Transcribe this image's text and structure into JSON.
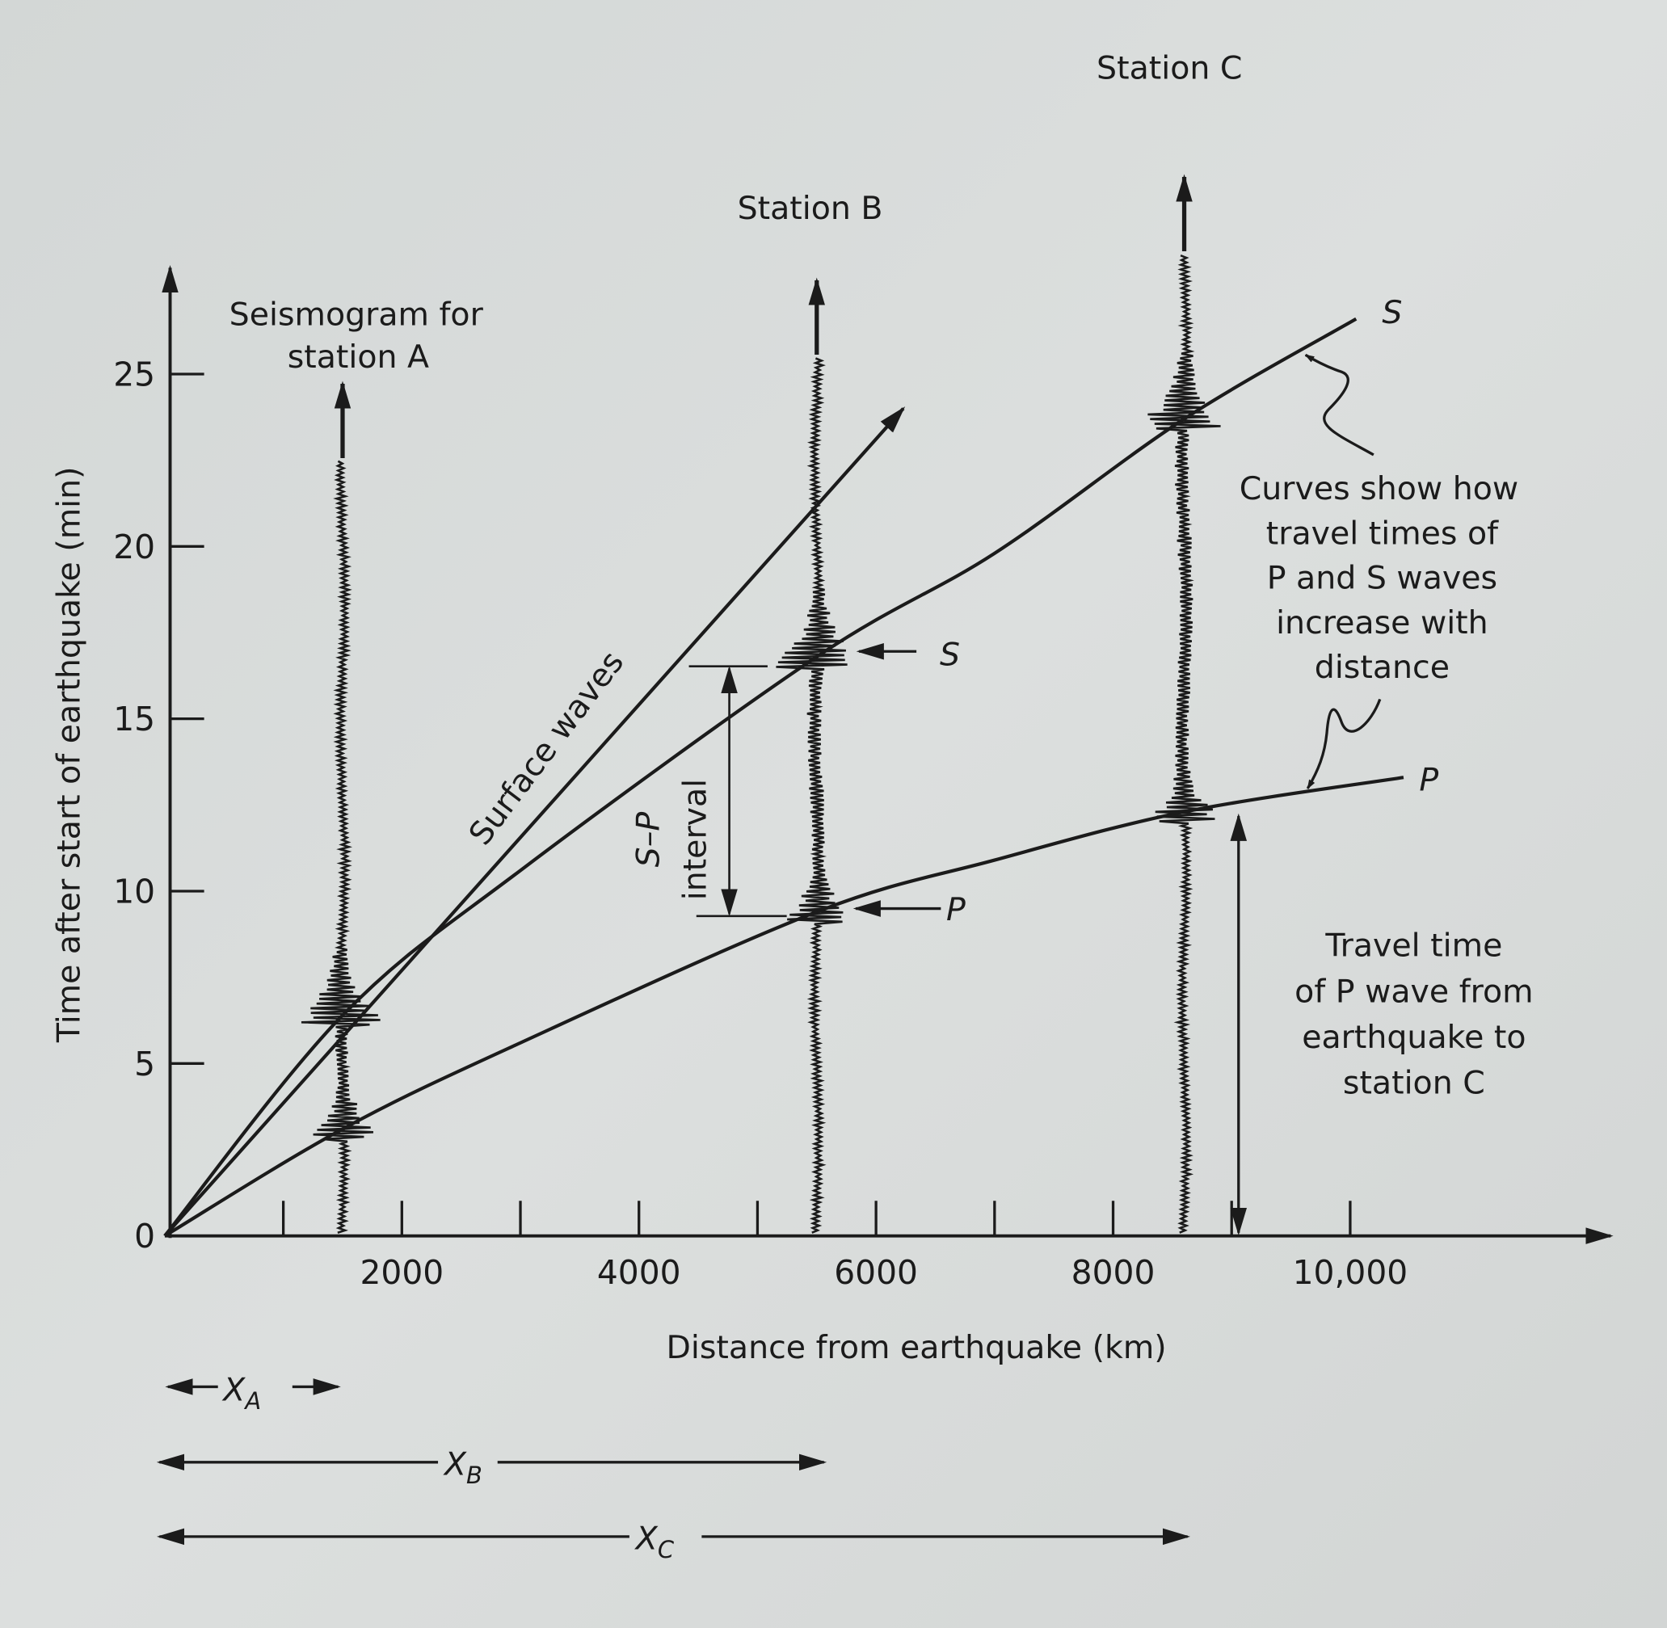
{
  "chart_data": {
    "type": "line",
    "xlabel": "Distance from earthquake (km)",
    "ylabel": "Time after start of earthquake (min)",
    "xlim": [
      0,
      12000
    ],
    "ylim": [
      0,
      28
    ],
    "x_ticks": [
      1000,
      2000,
      3000,
      4000,
      5000,
      6000,
      7000,
      8000,
      9000,
      10000
    ],
    "x_tick_labels": [
      "2000",
      "4000",
      "6000",
      "8000",
      "10,000"
    ],
    "x_tick_label_values": [
      2000,
      4000,
      6000,
      8000,
      10000
    ],
    "y_ticks": [
      0,
      5,
      10,
      15,
      20,
      25
    ],
    "y_tick_labels": [
      "0",
      "5",
      "10",
      "15",
      "20",
      "25"
    ],
    "grid": false,
    "series": [
      {
        "name": "P",
        "x": [
          0,
          1500,
          3000,
          5500,
          7000,
          8600,
          10450
        ],
        "y": [
          0,
          3.1,
          5.6,
          9.4,
          10.9,
          12.3,
          13.3
        ]
      },
      {
        "name": "S",
        "x": [
          0,
          1500,
          3000,
          5500,
          7000,
          8600,
          10050
        ],
        "y": [
          0,
          6.4,
          10.6,
          16.8,
          19.8,
          23.7,
          26.6
        ]
      },
      {
        "name": "Surface waves",
        "x": [
          0,
          6230
        ],
        "y": [
          0,
          24.0
        ]
      }
    ],
    "stations": [
      {
        "name": "A",
        "distance": 1500,
        "p_arrival": 3.1,
        "s_arrival": 6.4,
        "label": "Seismogram for",
        "label2": "station A"
      },
      {
        "name": "B",
        "distance": 5500,
        "p_arrival": 9.4,
        "s_arrival": 16.8,
        "label": "Station B"
      },
      {
        "name": "C",
        "distance": 8600,
        "p_arrival": 12.3,
        "s_arrival": 23.7,
        "label": "Station C"
      }
    ],
    "annotations": {
      "surface_waves": "Surface waves",
      "s_curve_label": "S",
      "p_curve_label": "P",
      "curves_note": [
        "Curves show how",
        "travel times of",
        "P and S waves",
        "increase with",
        "distance"
      ],
      "s_arrow_label": "S",
      "p_arrow_label": "P",
      "sp_label": "S–P",
      "sp_label2": "interval",
      "travel_note": [
        "Travel time",
        "of P wave from",
        "earthquake to",
        "station C"
      ],
      "xa": "X",
      "xa_sub": "A",
      "xb": "X",
      "xb_sub": "B",
      "xc": "X",
      "xc_sub": "C"
    }
  },
  "colors": {
    "ink": "#1b1b1b",
    "paper": "#d8dbda"
  }
}
